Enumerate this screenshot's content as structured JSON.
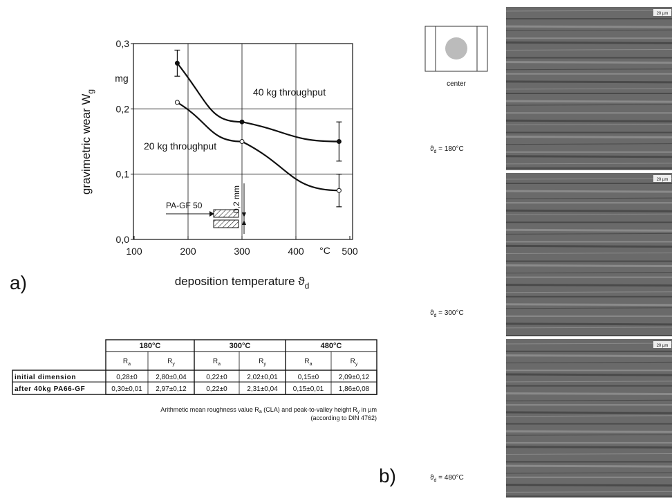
{
  "chart_data": {
    "type": "line",
    "x_label": "deposition temperature ϑ",
    "x_label_sub": "d",
    "y_label": "gravimetric wear W",
    "y_label_sub": "g",
    "y_unit": "mg",
    "x_unit": "°C",
    "xlim": [
      100,
      500
    ],
    "xticks": [
      100,
      200,
      300,
      400,
      500
    ],
    "ylim": [
      0,
      0.3
    ],
    "yticks": [
      {
        "value": 0,
        "label": "0,0"
      },
      {
        "value": 0.1,
        "label": "0,1"
      },
      {
        "value": 0.2,
        "label": "0,2"
      },
      {
        "value": 0.3,
        "label": "0,3"
      }
    ],
    "grid": true,
    "series": [
      {
        "name": "40 kg throughput",
        "color": "#111",
        "x": [
          180,
          300,
          480
        ],
        "values": [
          0.27,
          0.18,
          0.15
        ],
        "errors": [
          0.02,
          null,
          0.03
        ],
        "marker": "filled"
      },
      {
        "name": "20 kg throughput",
        "color": "#111",
        "x": [
          180,
          300,
          480
        ],
        "values": [
          0.21,
          0.15,
          0.075
        ],
        "errors": [
          null,
          null,
          0.025
        ],
        "marker": "open"
      }
    ],
    "inset": {
      "material": "PA-GF 50",
      "gap": "0,2 mm"
    }
  },
  "panel_a": "a)",
  "panel_b": "b)",
  "table": {
    "groups": [
      "180°C",
      "300°C",
      "480°C"
    ],
    "subheaders": [
      {
        "text": "R",
        "sub": "a"
      },
      {
        "text": "R",
        "sub": "y"
      },
      {
        "text": "R",
        "sub": "a"
      },
      {
        "text": "R",
        "sub": "y"
      },
      {
        "text": "R",
        "sub": "a"
      },
      {
        "text": "R",
        "sub": "y"
      }
    ],
    "rows": [
      [
        "initial dimension",
        "0,28±0",
        "2,80±0,04",
        "0,22±0",
        "2,02±0,01",
        "0,15±0",
        "2,09±0,12"
      ],
      [
        "after 40kg PA66-GF",
        "0,30±0,01",
        "2,97±0,12",
        "0,22±0",
        "2,31±0,04",
        "0,15±0,01",
        "1,86±0,08"
      ]
    ],
    "caption": {
      "p1": "Arithmetic mean roughness value R",
      "s1": "a",
      "p2": " (CLA) and peak-to-valley height R",
      "s2": "y",
      "p3": " in µm",
      "line2": "(according to DIN 4762)"
    }
  },
  "micrographs": {
    "position_label": "center",
    "scale": "20 µm",
    "images": [
      {
        "symbol": "ϑ",
        "sub": "d",
        "label": " = 180°C"
      },
      {
        "symbol": "ϑ",
        "sub": "d",
        "label": " = 300°C"
      },
      {
        "symbol": "ϑ",
        "sub": "d",
        "label": " = 480°C"
      }
    ]
  }
}
